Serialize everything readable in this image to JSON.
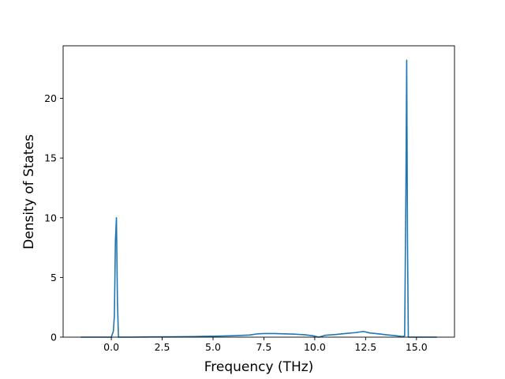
{
  "chart_data": {
    "type": "line",
    "title": "",
    "xlabel": "Frequency (THz)",
    "ylabel": "Density of States",
    "xlim": [
      -2.37,
      16.87
    ],
    "ylim": [
      0,
      24.4
    ],
    "grid": false,
    "x_ticks": [
      0.0,
      2.5,
      5.0,
      7.5,
      10.0,
      12.5,
      15.0
    ],
    "x_tick_labels": [
      "0.0",
      "2.5",
      "5.0",
      "7.5",
      "10.0",
      "12.5",
      "15.0"
    ],
    "y_ticks": [
      0,
      5,
      10,
      15,
      20
    ],
    "y_tick_labels": [
      "0",
      "5",
      "10",
      "15",
      "20"
    ],
    "series": [
      {
        "color": "#1f77b4",
        "x": [
          -1.5,
          -0.5,
          0.0,
          0.1,
          0.15,
          0.2,
          0.25,
          0.3,
          0.35,
          0.5,
          1.0,
          2.0,
          3.0,
          4.0,
          5.0,
          6.0,
          6.8,
          7.2,
          7.5,
          8.0,
          8.5,
          9.0,
          9.5,
          9.9,
          10.2,
          10.5,
          11.0,
          11.5,
          12.0,
          12.4,
          12.7,
          13.0,
          13.5,
          14.0,
          14.3,
          14.42,
          14.48,
          14.52,
          14.56,
          14.6,
          14.7,
          15.0,
          15.5,
          16.0
        ],
        "y": [
          0,
          0,
          0,
          0.5,
          1.8,
          8.0,
          10.0,
          3.0,
          0,
          0,
          0,
          0.02,
          0.03,
          0.05,
          0.08,
          0.12,
          0.18,
          0.28,
          0.3,
          0.3,
          0.28,
          0.25,
          0.2,
          0.12,
          0.0,
          0.15,
          0.22,
          0.3,
          0.38,
          0.48,
          0.35,
          0.3,
          0.2,
          0.12,
          0.05,
          0.1,
          12.0,
          23.2,
          8.0,
          0,
          0,
          0,
          0,
          0
        ]
      }
    ]
  }
}
